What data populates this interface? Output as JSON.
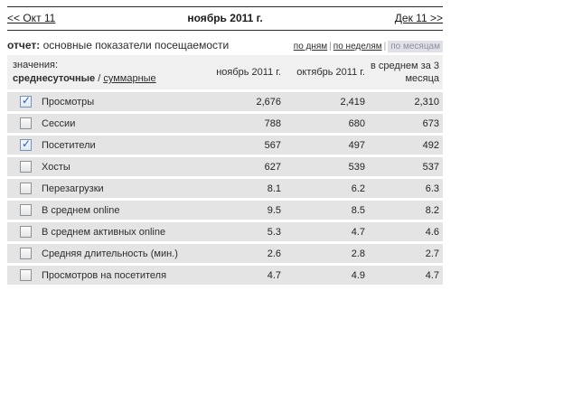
{
  "nav": {
    "prev_label": "<< Окт 11",
    "title": "ноябрь 2011 г.",
    "next_label": "Дек 11 >>"
  },
  "report": {
    "label": "отчет:",
    "name": "основные показатели посещаемости"
  },
  "period_tabs": {
    "separator": "|",
    "items": [
      {
        "label": "по дням",
        "selected": false
      },
      {
        "label": "по неделям",
        "selected": false
      },
      {
        "label": "по месяцам",
        "selected": true
      }
    ]
  },
  "icons": {
    "check": "✓"
  },
  "table": {
    "values_label": "значения:",
    "mode_primary": "среднесуточные",
    "mode_separator": "/",
    "mode_secondary": "суммарные",
    "columns": [
      "ноябрь 2011 г.",
      "октябрь 2011 г.",
      "в среднем за 3 месяца"
    ],
    "rows": [
      {
        "label": "Просмотры",
        "checked": true,
        "values": [
          "2,676",
          "2,419",
          "2,310"
        ]
      },
      {
        "label": "Сессии",
        "checked": false,
        "values": [
          "788",
          "680",
          "673"
        ]
      },
      {
        "label": "Посетители",
        "checked": true,
        "values": [
          "567",
          "497",
          "492"
        ]
      },
      {
        "label": "Хосты",
        "checked": false,
        "values": [
          "627",
          "539",
          "537"
        ]
      },
      {
        "label": "Перезагрузки",
        "checked": false,
        "values": [
          "8.1",
          "6.2",
          "6.3"
        ]
      },
      {
        "label": "В среднем online",
        "checked": false,
        "values": [
          "9.5",
          "8.5",
          "8.2"
        ]
      },
      {
        "label": "В среднем активных online",
        "checked": false,
        "values": [
          "5.3",
          "4.7",
          "4.6"
        ]
      },
      {
        "label": "Средняя длительность (мин.)",
        "checked": false,
        "values": [
          "2.6",
          "2.8",
          "2.7"
        ]
      },
      {
        "label": "Просмотров на посетителя",
        "checked": false,
        "values": [
          "4.7",
          "4.9",
          "4.7"
        ]
      }
    ]
  },
  "colors": {
    "row_background": "#e4e4e4",
    "header_background": "#f0f0f0",
    "selected_tab_background": "#e0e0e8",
    "check_accent": "#2a5caa",
    "border_line": "#2b2b2b"
  }
}
